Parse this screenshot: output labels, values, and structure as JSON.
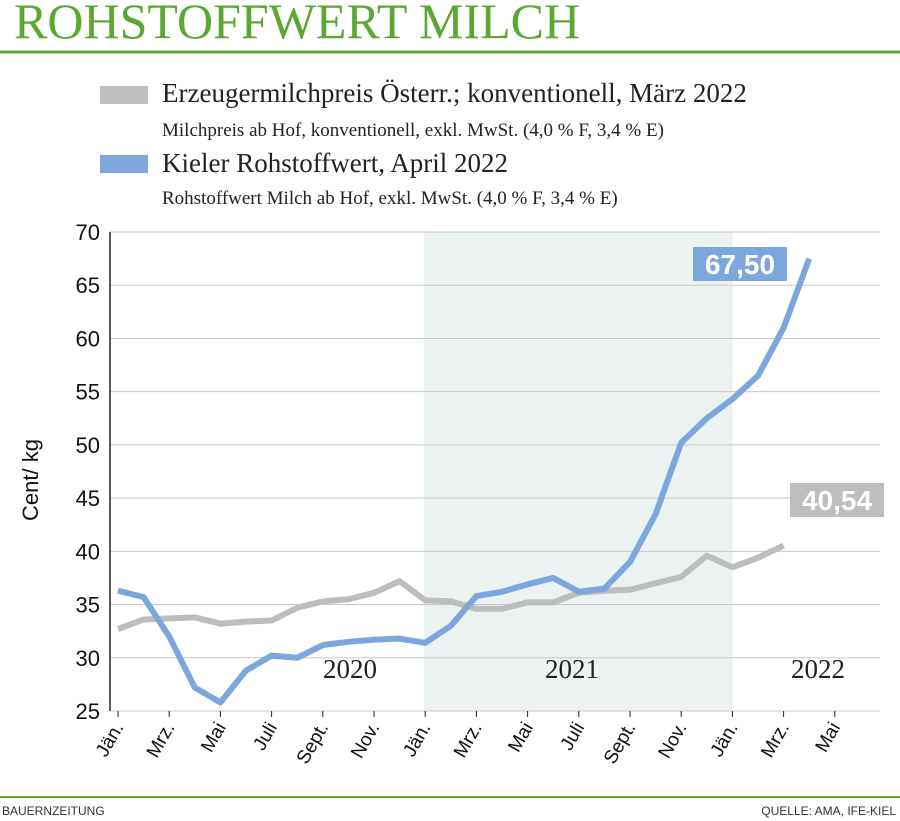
{
  "chart_data": {
    "type": "line",
    "title": "ROHSTOFFWERT MILCH",
    "ylabel": "Cent/ kg",
    "categories": [
      "Jän.",
      null,
      "Mrz.",
      null,
      "Mai",
      null,
      "Juli",
      null,
      "Sept.",
      null,
      "Nov.",
      null,
      "Jän.",
      null,
      "Mrz.",
      null,
      "Mai",
      null,
      "Juli",
      null,
      "Sept.",
      null,
      "Nov.",
      null,
      "Jän.",
      null,
      "Mrz.",
      null,
      "Mai"
    ],
    "year_labels": [
      "2020",
      "2021",
      "2022"
    ],
    "series": [
      {
        "name": "Erzeugermilchpreis Österr.; konventionell, März 2022",
        "description": "Milchpreis ab Hof, konventionell, exkl. MwSt. (4,0 % F, 3,4 % E)",
        "color": "#bdbdbd",
        "values": [
          32.7,
          33.6,
          33.7,
          33.8,
          33.2,
          33.4,
          33.5,
          34.7,
          35.3,
          35.5,
          36.1,
          37.2,
          35.4,
          35.3,
          34.6,
          34.6,
          35.2,
          35.2,
          36.1,
          36.3,
          36.4,
          37.0,
          37.6,
          39.6,
          38.5,
          39.4,
          40.54,
          null,
          null
        ],
        "value_labels": [
          null,
          null,
          null,
          null,
          null,
          null,
          null,
          null,
          null,
          null,
          null,
          null,
          null,
          null,
          null,
          null,
          null,
          null,
          null,
          null,
          null,
          null,
          null,
          null,
          null,
          null,
          "40,54",
          null,
          null
        ]
      },
      {
        "name": "Kieler Rohstoffwert, April 2022",
        "description": "Rohstoffwert Milch ab Hof, exkl. MwSt. (4,0 % F, 3,4 % E)",
        "color": "#7ba7dd",
        "values": [
          36.3,
          35.7,
          32.0,
          27.2,
          25.8,
          28.8,
          30.2,
          30.0,
          31.2,
          31.5,
          31.7,
          31.8,
          31.4,
          33.0,
          35.8,
          36.2,
          36.9,
          37.5,
          36.2,
          36.5,
          39.0,
          43.5,
          50.2,
          52.5,
          54.3,
          56.5,
          61.0,
          67.5,
          null
        ],
        "value_labels": [
          null,
          null,
          null,
          null,
          null,
          null,
          null,
          null,
          null,
          null,
          null,
          null,
          null,
          null,
          null,
          null,
          null,
          null,
          null,
          null,
          null,
          null,
          null,
          null,
          null,
          null,
          null,
          "67,50",
          null
        ]
      }
    ],
    "ylim": [
      25,
      70
    ],
    "yticks": [
      25,
      30,
      35,
      40,
      45,
      50,
      55,
      60,
      65,
      70
    ],
    "grid": true,
    "source_left": "BAUERNZEITUNG",
    "source_right": "QUELLE: AMA, IFE-KIEL"
  }
}
